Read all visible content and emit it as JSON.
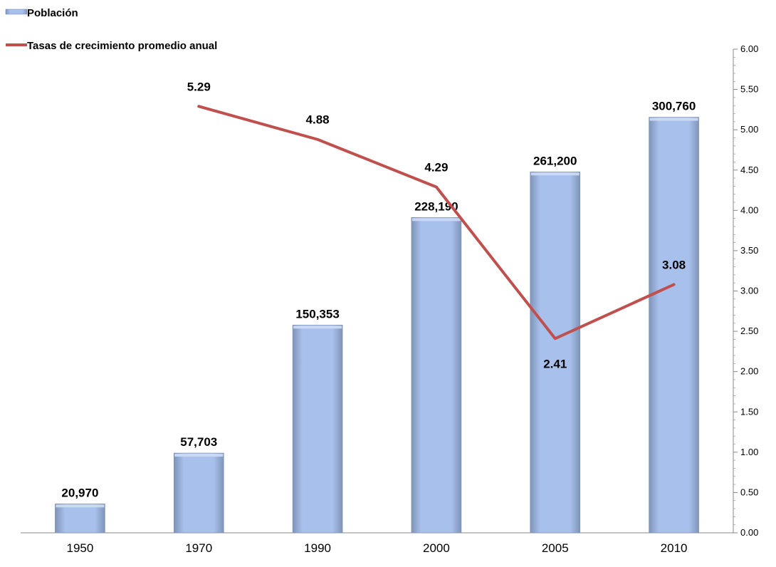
{
  "chart_data": {
    "type": "bar",
    "categories": [
      "1950",
      "1970",
      "1990",
      "2000",
      "2005",
      "2010"
    ],
    "series": [
      {
        "name": "Población",
        "type": "bar",
        "values": [
          20970,
          57703,
          150353,
          228190,
          261200,
          300760
        ],
        "labels": [
          "20,970",
          "57,703",
          "150,353",
          "228,190",
          "261,200",
          "300,760"
        ],
        "color": "#a4bde9"
      },
      {
        "name": "Tasas de crecimiento promedio anual",
        "type": "line",
        "axis": "right",
        "values": [
          null,
          5.29,
          4.88,
          4.29,
          2.41,
          3.08
        ],
        "labels": [
          "",
          "5.29",
          "4.88",
          "4.29",
          "2.41",
          "3.08"
        ],
        "color": "#c0504d"
      }
    ],
    "y_left_range": [
      0,
      350000
    ],
    "y_right": {
      "range": [
        0,
        6
      ],
      "ticks": [
        "0.00",
        "0.50",
        "1.00",
        "1.50",
        "2.00",
        "2.50",
        "3.00",
        "3.50",
        "4.00",
        "4.50",
        "5.00",
        "5.50",
        "6.00"
      ]
    },
    "legend_position": "top-left",
    "grid": false
  }
}
